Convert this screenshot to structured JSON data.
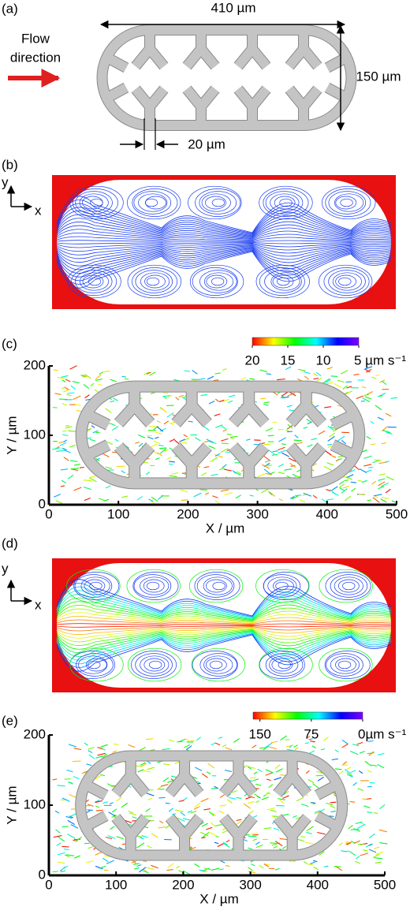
{
  "panel_a": {
    "label": "(a)",
    "flow_direction": [
      "Flow",
      "direction"
    ],
    "width": "410 µm",
    "height": "150 µm",
    "gap": "20 µm"
  },
  "panel_b": {
    "label": "(b)",
    "axis_y": "y",
    "axis_x": "x"
  },
  "panel_d": {
    "label": "(d)",
    "axis_y": "y",
    "axis_x": "x"
  },
  "chart_data": [
    {
      "type": "vector",
      "panel_label": "(c)",
      "xlabel": "X / µm",
      "ylabel": "Y / µm",
      "xlim": [
        0,
        500
      ],
      "xticks": [
        0,
        100,
        200,
        300,
        400,
        500
      ],
      "ylim": [
        0,
        200
      ],
      "yticks": [
        0,
        100,
        200
      ],
      "colorbar": {
        "lim": [
          20,
          5
        ],
        "ticks": [
          20,
          15,
          10,
          {
            "value": 5,
            "label": "5 µm s⁻¹"
          }
        ],
        "colors": [
          "#ff0000",
          "#ffff00",
          "#00ff00",
          "#00ffff",
          "#0000ff",
          "#8000ff"
        ]
      }
    },
    {
      "type": "vector",
      "panel_label": "(e)",
      "xlabel": "X / µm",
      "ylabel": "Y / µm",
      "xlim": [
        0,
        500
      ],
      "xticks": [
        0,
        100,
        200,
        300,
        400,
        500
      ],
      "ylim": [
        0,
        200
      ],
      "yticks": [
        0,
        100,
        200
      ],
      "colorbar": {
        "lim": [
          160,
          0
        ],
        "ticks": [
          150,
          75,
          {
            "value": 0,
            "label": "0µm s⁻¹"
          }
        ],
        "colors": [
          "#ff0000",
          "#ffff00",
          "#00ff00",
          "#00ffff",
          "#0000ff",
          "#8000ff"
        ]
      }
    }
  ]
}
